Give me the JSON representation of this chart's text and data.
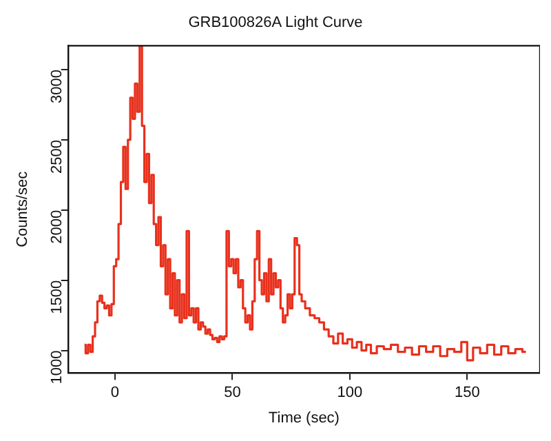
{
  "chart_data": {
    "type": "step",
    "title": "GRB100826A Light Curve",
    "xlabel": "Time (sec)",
    "ylabel": "Counts/sec",
    "x": [
      -13,
      -12,
      -11,
      -10,
      -9,
      -8,
      -7,
      -6,
      -5,
      -4,
      -3,
      -2,
      -1,
      0,
      1,
      2,
      3,
      4,
      5,
      6,
      7,
      8,
      9,
      10,
      11,
      12,
      13,
      14,
      15,
      16,
      17,
      18,
      19,
      20,
      21,
      22,
      23,
      24,
      25,
      26,
      27,
      28,
      29,
      30,
      31,
      32,
      33,
      34,
      35,
      36,
      37,
      38,
      39,
      40,
      41,
      42,
      43,
      44,
      45,
      46,
      47,
      48,
      49,
      50,
      51,
      52,
      53,
      54,
      55,
      56,
      57,
      58,
      59,
      60,
      61,
      62,
      63,
      64,
      65,
      66,
      67,
      68,
      69,
      70,
      71,
      72,
      73,
      74,
      75,
      76,
      77,
      78,
      79,
      80,
      82,
      84,
      86,
      88,
      90,
      92,
      94,
      96,
      98,
      100,
      102,
      104,
      106,
      108,
      110,
      113,
      116,
      119,
      122,
      125,
      128,
      131,
      134,
      137,
      140,
      143,
      146,
      149,
      151,
      154,
      157,
      160,
      163,
      166,
      169,
      172,
      175
    ],
    "series": [
      {
        "color": "#e8301c",
        "values": [
          1040,
          980,
          1040,
          990,
          1100,
          1200,
          1350,
          1390,
          1340,
          1300,
          1320,
          1250,
          1330,
          1600,
          1650,
          1900,
          2200,
          2450,
          2150,
          2500,
          2800,
          2650,
          2900,
          2700,
          3170,
          2600,
          2200,
          2400,
          2050,
          2250,
          1900,
          1750,
          1950,
          1600,
          1750,
          1400,
          1650,
          1300,
          1550,
          1250,
          1500,
          1200,
          1400,
          1230,
          1850,
          1250,
          1300,
          1200,
          1300,
          1150,
          1200,
          1170,
          1120,
          1150,
          1110,
          1080,
          1090,
          1060,
          1100,
          1080,
          1100,
          1850,
          1600,
          1650,
          1550,
          1650,
          1450,
          1500,
          1300,
          1200,
          1250,
          1150,
          1350,
          1650,
          1850,
          1500,
          1400,
          1550,
          1350,
          1650,
          1400,
          1550,
          1450,
          1500,
          1300,
          1200,
          1250,
          1400,
          1300,
          1400,
          1800,
          1750,
          1400,
          1350,
          1300,
          1250,
          1230,
          1200,
          1150,
          1100,
          1050,
          1120,
          1050,
          1080,
          1020,
          1060,
          1000,
          1040,
          980,
          1030,
          1010,
          1040,
          990,
          1020,
          970,
          1030,
          990,
          1030,
          960,
          1010,
          990,
          1060,
          930,
          1020,
          980,
          1040,
          970,
          1030,
          980,
          1010,
          990
        ]
      }
    ],
    "xlim": [
      -20,
      181
    ],
    "xticks": [
      0,
      50,
      100,
      150
    ],
    "ylim": [
      840,
      3170
    ],
    "yticks": [
      1000,
      1500,
      2000,
      2500,
      3000
    ],
    "grid": false,
    "legend": false
  }
}
